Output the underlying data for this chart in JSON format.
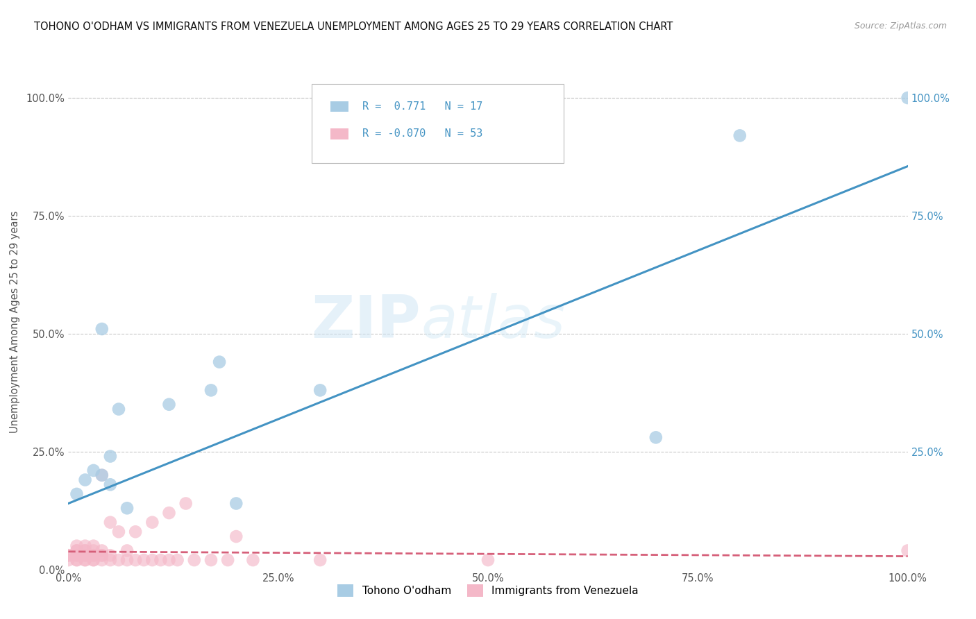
{
  "title": "TOHONO O'ODHAM VS IMMIGRANTS FROM VENEZUELA UNEMPLOYMENT AMONG AGES 25 TO 29 YEARS CORRELATION CHART",
  "source": "Source: ZipAtlas.com",
  "ylabel": "Unemployment Among Ages 25 to 29 years",
  "xmin": 0.0,
  "xmax": 1.0,
  "ymin": 0.0,
  "ymax": 1.05,
  "xtick_labels": [
    "0.0%",
    "25.0%",
    "50.0%",
    "75.0%",
    "100.0%"
  ],
  "xtick_vals": [
    0.0,
    0.25,
    0.5,
    0.75,
    1.0
  ],
  "ytick_labels": [
    "0.0%",
    "25.0%",
    "50.0%",
    "75.0%",
    "100.0%"
  ],
  "ytick_vals": [
    0.0,
    0.25,
    0.5,
    0.75,
    1.0
  ],
  "right_ytick_labels": [
    "25.0%",
    "50.0%",
    "75.0%",
    "100.0%"
  ],
  "right_ytick_vals": [
    0.25,
    0.5,
    0.75,
    1.0
  ],
  "legend_label1": "Tohono O'odham",
  "legend_label2": "Immigrants from Venezuela",
  "r1": 0.771,
  "n1": 17,
  "r2": -0.07,
  "n2": 53,
  "color_blue": "#a8cce4",
  "color_pink": "#f4b8c8",
  "line_color_blue": "#4393c3",
  "line_color_pink": "#d6607a",
  "blue_x": [
    0.01,
    0.02,
    0.03,
    0.04,
    0.04,
    0.05,
    0.05,
    0.06,
    0.07,
    0.12,
    0.17,
    0.18,
    0.2,
    0.3,
    0.7,
    1.0,
    0.8
  ],
  "blue_y": [
    0.16,
    0.19,
    0.21,
    0.2,
    0.51,
    0.18,
    0.24,
    0.34,
    0.13,
    0.35,
    0.38,
    0.44,
    0.14,
    0.38,
    0.28,
    1.0,
    0.92
  ],
  "pink_x": [
    0.0,
    0.0,
    0.0,
    0.01,
    0.01,
    0.01,
    0.01,
    0.01,
    0.01,
    0.01,
    0.02,
    0.02,
    0.02,
    0.02,
    0.02,
    0.02,
    0.02,
    0.03,
    0.03,
    0.03,
    0.03,
    0.03,
    0.03,
    0.04,
    0.04,
    0.04,
    0.04,
    0.04,
    0.05,
    0.05,
    0.05,
    0.06,
    0.06,
    0.07,
    0.07,
    0.08,
    0.08,
    0.09,
    0.1,
    0.1,
    0.11,
    0.12,
    0.12,
    0.13,
    0.14,
    0.15,
    0.17,
    0.19,
    0.2,
    0.22,
    0.3,
    0.5,
    1.0
  ],
  "pink_y": [
    0.02,
    0.03,
    0.03,
    0.02,
    0.02,
    0.03,
    0.03,
    0.04,
    0.04,
    0.05,
    0.02,
    0.02,
    0.03,
    0.03,
    0.04,
    0.04,
    0.05,
    0.02,
    0.02,
    0.03,
    0.03,
    0.04,
    0.05,
    0.02,
    0.03,
    0.03,
    0.04,
    0.2,
    0.02,
    0.03,
    0.1,
    0.02,
    0.08,
    0.02,
    0.04,
    0.02,
    0.08,
    0.02,
    0.02,
    0.1,
    0.02,
    0.02,
    0.12,
    0.02,
    0.14,
    0.02,
    0.02,
    0.02,
    0.07,
    0.02,
    0.02,
    0.02,
    0.04
  ],
  "blue_line_x0": 0.0,
  "blue_line_y0": 0.14,
  "blue_line_x1": 1.0,
  "blue_line_y1": 0.855,
  "pink_line_x0": 0.0,
  "pink_line_y0": 0.038,
  "pink_line_x1": 1.0,
  "pink_line_y1": 0.028,
  "watermark_line1": "ZIP",
  "watermark_line2": "atlas",
  "background_color": "#ffffff",
  "grid_color": "#c8c8c8"
}
